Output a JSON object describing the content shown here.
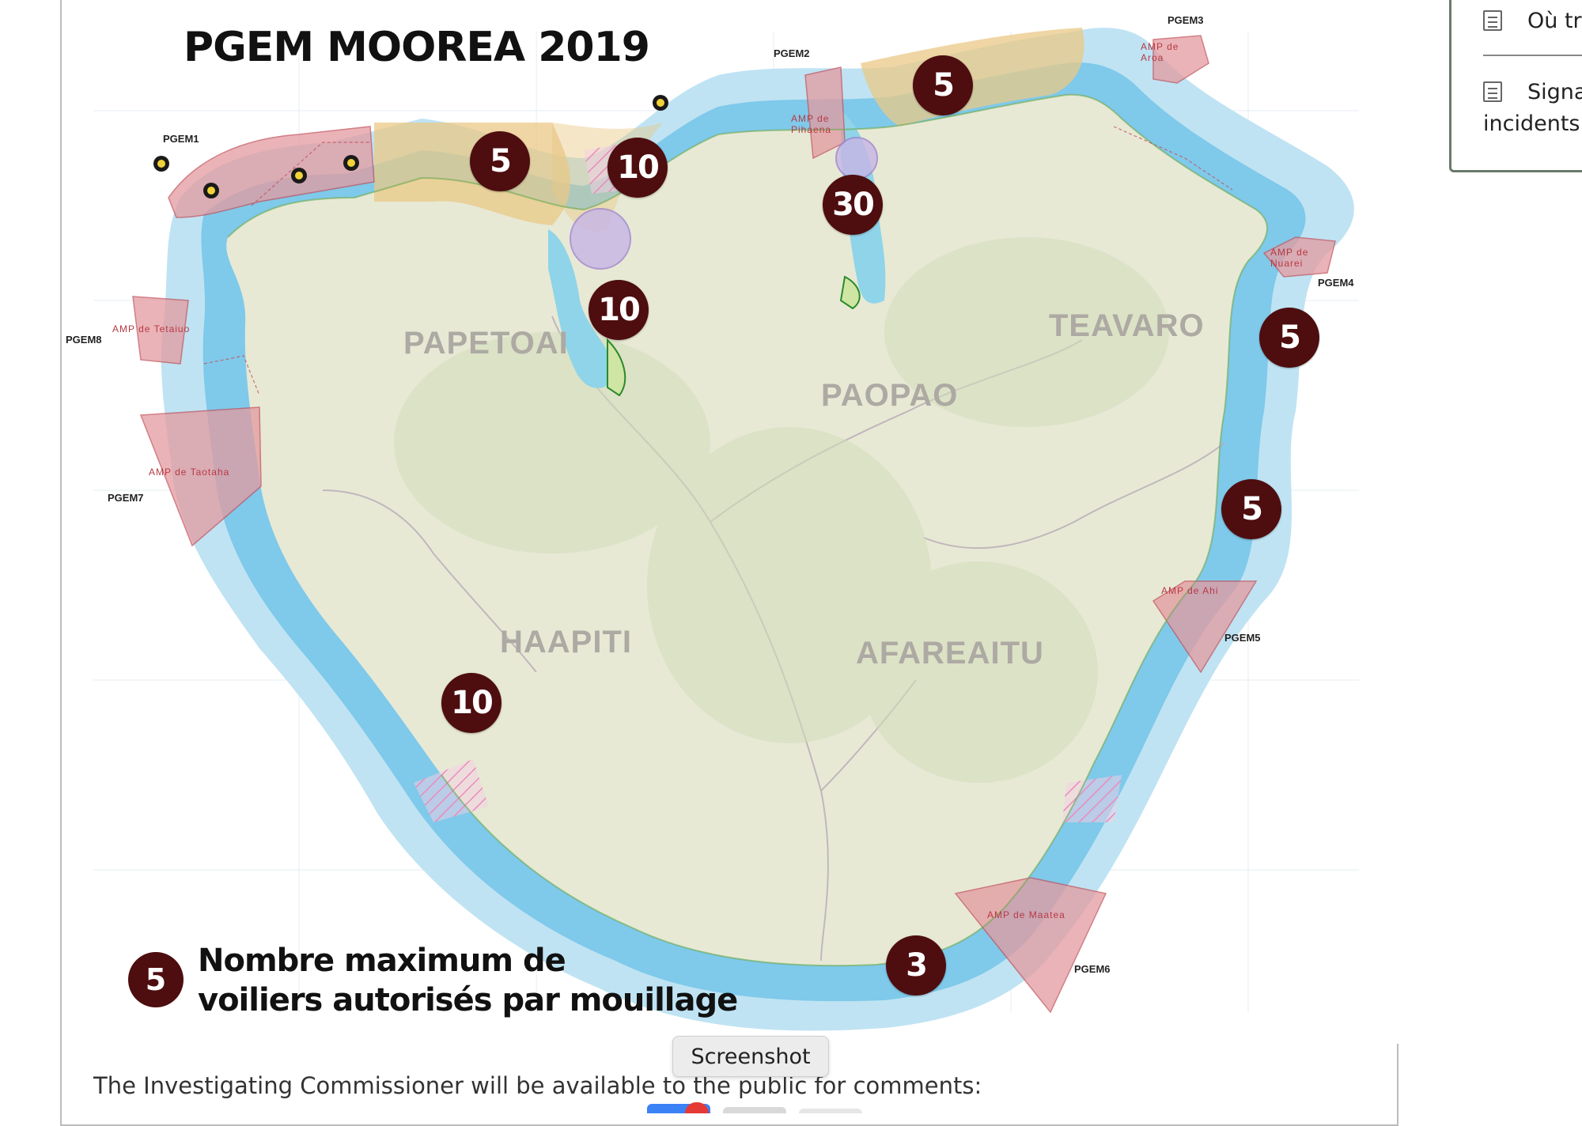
{
  "map": {
    "title": "PGEM MOOREA 2019",
    "districts": [
      "PAPETOAI",
      "PAOPAO",
      "TEAVARO",
      "HAAPITI",
      "AFAREAITU"
    ],
    "zones": [
      "PGEM1",
      "PGEM2",
      "PGEM3",
      "PGEM4",
      "PGEM5",
      "PGEM6",
      "PGEM7",
      "PGEM8"
    ],
    "marine_areas": [
      "AMP de Tetaiuo",
      "AMP de Taotaha",
      "AMP de Pihaena",
      "AMP de Nuarei",
      "AMP de Ahi",
      "AMP de Maatea",
      "AMP de Aroa"
    ],
    "anchorage_limits": [
      "5",
      "10",
      "10",
      "30",
      "5",
      "5",
      "5",
      "10",
      "3"
    ]
  },
  "legend": {
    "badge_value": "5",
    "line1": "Nombre maximum de",
    "line2": "voiliers autorisés par mouillage"
  },
  "body": {
    "paragraph": "The Investigating Commissioner will be available to the public for comments:"
  },
  "tooltip": {
    "label": "Screenshot"
  },
  "side_panel": {
    "items": [
      {
        "label": "Où tro"
      },
      {
        "label": "Signal"
      }
    ],
    "item2_line2": "incidents"
  },
  "colors": {
    "badge": "#4e0d0f",
    "lagoon": "#cfeaf6",
    "reef": "#8fd0ee",
    "land": "#e6e8d6",
    "amp_zone": "#e8a7aa",
    "fishing_zone": "#e8c98f"
  }
}
